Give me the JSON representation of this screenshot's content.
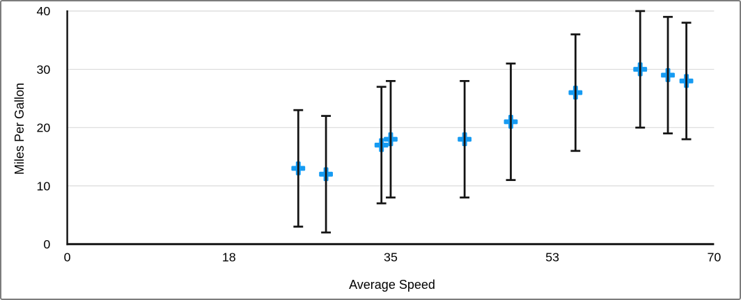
{
  "figure": {
    "background": "#ffffff",
    "border_color": "#7c7c7c"
  },
  "chart_data": {
    "type": "scatter",
    "title": "",
    "xlabel": "Average Speed",
    "ylabel": "Miles Per Gallon",
    "xlim": [
      0,
      70
    ],
    "ylim": [
      0,
      40
    ],
    "x_ticks": {
      "positions": [
        0,
        17.5,
        35,
        52.5,
        70
      ],
      "labels": [
        "0",
        "18",
        "35",
        "53",
        "70"
      ]
    },
    "y_ticks": {
      "positions": [
        0,
        10,
        20,
        30,
        40
      ],
      "labels": [
        "0",
        "10",
        "20",
        "30",
        "40"
      ]
    },
    "grid": "horizontal",
    "legend": "none",
    "series": [
      {
        "name": "Miles Per Gallon",
        "marker": "plus",
        "marker_color": "#169bf2",
        "marker_size": 20,
        "error_bars": {
          "direction": "y",
          "type": "fixed",
          "value": 10,
          "color": "#141414"
        },
        "points": [
          {
            "x": 25,
            "y": 13,
            "error_plus": 10,
            "error_minus": 10
          },
          {
            "x": 28,
            "y": 12,
            "error_plus": 10,
            "error_minus": 10
          },
          {
            "x": 34,
            "y": 17,
            "error_plus": 10,
            "error_minus": 10
          },
          {
            "x": 35,
            "y": 18,
            "error_plus": 10,
            "error_minus": 10
          },
          {
            "x": 43,
            "y": 18,
            "error_plus": 10,
            "error_minus": 10
          },
          {
            "x": 48,
            "y": 21,
            "error_plus": 10,
            "error_minus": 10
          },
          {
            "x": 55,
            "y": 26,
            "error_plus": 10,
            "error_minus": 10
          },
          {
            "x": 62,
            "y": 30,
            "error_plus": 10,
            "error_minus": 10
          },
          {
            "x": 65,
            "y": 29,
            "error_plus": 10,
            "error_minus": 10
          },
          {
            "x": 67,
            "y": 28,
            "error_plus": 10,
            "error_minus": 10
          }
        ]
      }
    ],
    "colors": {
      "grid": "#d9d9d9",
      "axis": "#141414",
      "tick_text": "#000000"
    },
    "tick_font_size": 18
  }
}
